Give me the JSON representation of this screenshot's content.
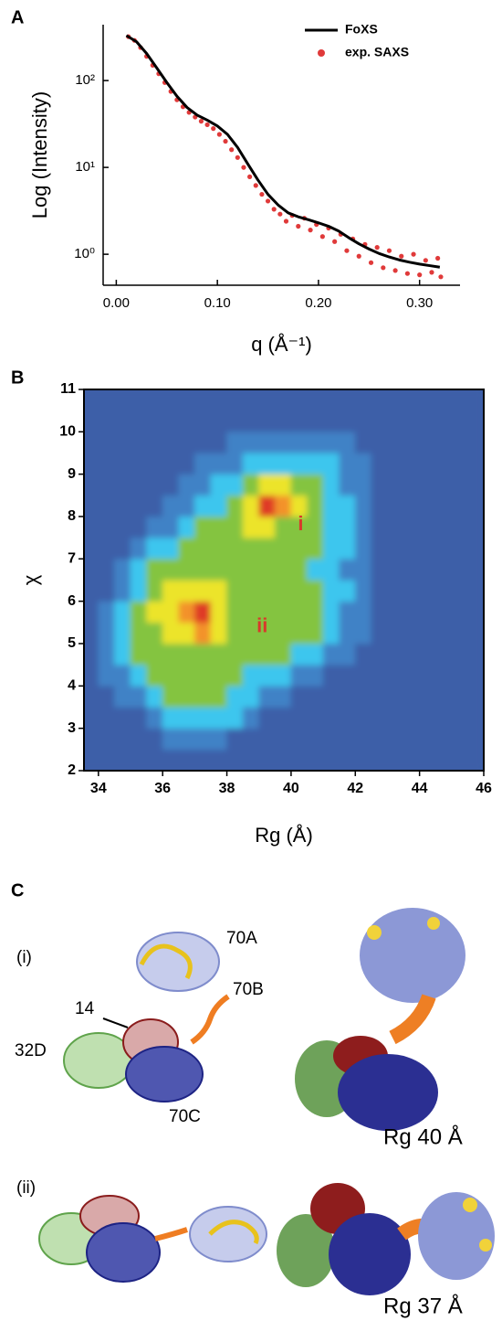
{
  "panel_labels": [
    "A",
    "B",
    "C"
  ],
  "chart_data": [
    {
      "type": "line",
      "ylabel": "Log (Intensity)",
      "xlabel": "q (Å⁻¹)",
      "xlim": [
        -0.013,
        0.34
      ],
      "ylim": [
        0.44,
        440
      ],
      "log_y": true,
      "legend": "upper right",
      "xticks": [
        {
          "value": 0,
          "label": "0.00"
        },
        {
          "value": 0.1,
          "label": "0.10"
        },
        {
          "value": 0.2,
          "label": "0.20"
        },
        {
          "value": 0.3,
          "label": "0.30"
        }
      ],
      "yticks": [
        {
          "value": 1,
          "label": "10⁰"
        },
        {
          "value": 10,
          "label": "10¹"
        },
        {
          "value": 100,
          "label": "10²"
        }
      ],
      "series": [
        {
          "name": "exp. SAXS",
          "type": "scatter",
          "color": "#e03a3a",
          "x": [
            0.012,
            0.018,
            0.024,
            0.03,
            0.036,
            0.042,
            0.048,
            0.054,
            0.06,
            0.066,
            0.072,
            0.078,
            0.084,
            0.09,
            0.096,
            0.102,
            0.108,
            0.114,
            0.12,
            0.126,
            0.132,
            0.138,
            0.144,
            0.15,
            0.156,
            0.162,
            0.168,
            0.174,
            0.18,
            0.186,
            0.192,
            0.198,
            0.204,
            0.21,
            0.216,
            0.222,
            0.228,
            0.234,
            0.24,
            0.246,
            0.252,
            0.258,
            0.264,
            0.27,
            0.276,
            0.282,
            0.288,
            0.294,
            0.3,
            0.306,
            0.312,
            0.318,
            0.321
          ],
          "values": [
            320,
            290,
            240,
            190,
            150,
            120,
            95,
            75,
            60,
            50,
            43,
            38,
            34,
            31,
            28,
            24,
            20,
            16,
            13,
            10,
            7.8,
            6.2,
            4.9,
            4.1,
            3.3,
            2.9,
            2.4,
            2.8,
            2.1,
            2.6,
            1.9,
            2.2,
            1.6,
            2.0,
            1.4,
            1.7,
            1.1,
            1.5,
            0.95,
            1.3,
            0.8,
            1.2,
            0.7,
            1.1,
            0.65,
            0.95,
            0.6,
            1.0,
            0.58,
            0.85,
            0.62,
            0.9,
            0.55
          ]
        },
        {
          "name": "FoXS",
          "type": "line",
          "color": "#000000",
          "x": [
            0.01,
            0.02,
            0.03,
            0.04,
            0.05,
            0.06,
            0.07,
            0.08,
            0.09,
            0.1,
            0.11,
            0.12,
            0.13,
            0.14,
            0.15,
            0.16,
            0.17,
            0.18,
            0.19,
            0.2,
            0.21,
            0.22,
            0.23,
            0.24,
            0.25,
            0.26,
            0.27,
            0.28,
            0.29,
            0.3,
            0.31,
            0.32
          ],
          "values": [
            330,
            280,
            205,
            140,
            95,
            66,
            49,
            40,
            35,
            30,
            24,
            17,
            11,
            7.2,
            4.9,
            3.7,
            3.0,
            2.7,
            2.5,
            2.3,
            2.1,
            1.85,
            1.55,
            1.32,
            1.15,
            1.02,
            0.93,
            0.86,
            0.81,
            0.77,
            0.74,
            0.71
          ]
        }
      ]
    },
    {
      "type": "heatmap",
      "ylabel": "χ",
      "xlabel": "Rg (Å)",
      "xlim": [
        33.55,
        46
      ],
      "ylim": [
        2,
        11
      ],
      "xticks": [
        34,
        36,
        38,
        40,
        42,
        44,
        46
      ],
      "yticks": [
        2,
        3,
        4,
        5,
        6,
        7,
        8,
        9,
        10,
        11
      ],
      "colors": [
        "#3d5fa8",
        "#3f82c6",
        "#3ec6ee",
        "#84c441",
        "#ece42a",
        "#f3922a",
        "#df3b28"
      ],
      "x": [
        33.75,
        34.25,
        34.75,
        35.25,
        35.75,
        36.25,
        36.75,
        37.25,
        37.75,
        38.25,
        38.75,
        39.25,
        39.75,
        40.25,
        40.75,
        41.25,
        41.75,
        42.25,
        42.75,
        43.25,
        43.75,
        44.25,
        44.75,
        45.25,
        45.75
      ],
      "y": [
        2.25,
        2.75,
        3.25,
        3.75,
        4.25,
        4.75,
        5.25,
        5.75,
        6.25,
        6.75,
        7.25,
        7.75,
        8.25,
        8.75,
        9.25,
        9.75,
        10.25,
        10.75
      ],
      "z": [
        [
          0,
          0,
          0,
          0,
          0,
          0,
          0,
          0,
          0,
          0,
          0,
          0,
          0,
          0,
          0,
          0,
          0,
          0,
          0,
          0,
          0,
          0,
          0,
          0,
          0
        ],
        [
          0,
          0,
          0,
          0,
          0,
          1,
          1,
          1,
          1,
          0,
          0,
          0,
          0,
          0,
          0,
          0,
          0,
          0,
          0,
          0,
          0,
          0,
          0,
          0,
          0
        ],
        [
          0,
          0,
          0,
          0,
          1,
          2,
          2,
          2,
          2,
          2,
          1,
          0,
          0,
          0,
          0,
          0,
          0,
          0,
          0,
          0,
          0,
          0,
          0,
          0,
          0
        ],
        [
          0,
          0,
          1,
          1,
          2,
          3,
          3,
          3,
          3,
          2,
          2,
          1,
          1,
          0,
          0,
          0,
          0,
          0,
          0,
          0,
          0,
          0,
          0,
          0,
          0
        ],
        [
          0,
          1,
          1,
          2,
          3,
          3,
          3,
          3,
          3,
          3,
          2,
          2,
          2,
          1,
          1,
          0,
          0,
          0,
          0,
          0,
          0,
          0,
          0,
          0,
          0
        ],
        [
          0,
          1,
          2,
          3,
          3,
          3,
          3,
          3,
          3,
          3,
          3,
          3,
          3,
          2,
          2,
          1,
          1,
          0,
          0,
          0,
          0,
          0,
          0,
          0,
          0
        ],
        [
          0,
          1,
          2,
          3,
          3,
          4,
          4,
          5,
          4,
          3,
          3,
          3,
          3,
          3,
          3,
          2,
          1,
          1,
          0,
          0,
          0,
          0,
          0,
          0,
          0
        ],
        [
          0,
          1,
          2,
          3,
          4,
          4,
          5,
          6,
          4,
          3,
          3,
          3,
          3,
          3,
          3,
          2,
          1,
          1,
          0,
          0,
          0,
          0,
          0,
          0,
          0
        ],
        [
          0,
          0,
          1,
          2,
          3,
          4,
          4,
          4,
          4,
          3,
          3,
          3,
          3,
          3,
          3,
          2,
          2,
          1,
          0,
          0,
          0,
          0,
          0,
          0,
          0
        ],
        [
          0,
          0,
          1,
          2,
          3,
          3,
          3,
          3,
          3,
          3,
          3,
          3,
          3,
          3,
          2,
          2,
          1,
          1,
          0,
          0,
          0,
          0,
          0,
          0,
          0
        ],
        [
          0,
          0,
          0,
          1,
          2,
          2,
          3,
          3,
          3,
          3,
          3,
          3,
          3,
          3,
          3,
          2,
          2,
          1,
          0,
          0,
          0,
          0,
          0,
          0,
          0
        ],
        [
          0,
          0,
          0,
          0,
          1,
          1,
          2,
          3,
          3,
          3,
          4,
          4,
          3,
          3,
          3,
          2,
          2,
          1,
          0,
          0,
          0,
          0,
          0,
          0,
          0
        ],
        [
          0,
          0,
          0,
          0,
          0,
          1,
          1,
          2,
          2,
          3,
          4,
          6,
          5,
          4,
          3,
          2,
          2,
          1,
          0,
          0,
          0,
          0,
          0,
          0,
          0
        ],
        [
          0,
          0,
          0,
          0,
          0,
          0,
          1,
          1,
          2,
          2,
          3,
          4,
          4,
          3,
          3,
          2,
          1,
          1,
          0,
          0,
          0,
          0,
          0,
          0,
          0
        ],
        [
          0,
          0,
          0,
          0,
          0,
          0,
          0,
          1,
          1,
          1,
          2,
          2,
          2,
          2,
          2,
          2,
          1,
          1,
          0,
          0,
          0,
          0,
          0,
          0,
          0
        ],
        [
          0,
          0,
          0,
          0,
          0,
          0,
          0,
          0,
          0,
          1,
          1,
          1,
          1,
          1,
          1,
          1,
          1,
          0,
          0,
          0,
          0,
          0,
          0,
          0,
          0
        ],
        [
          0,
          0,
          0,
          0,
          0,
          0,
          0,
          0,
          0,
          0,
          0,
          0,
          0,
          0,
          0,
          0,
          0,
          0,
          0,
          0,
          0,
          0,
          0,
          0,
          0
        ],
        [
          0,
          0,
          0,
          0,
          0,
          0,
          0,
          0,
          0,
          0,
          0,
          0,
          0,
          0,
          0,
          0,
          0,
          0,
          0,
          0,
          0,
          0,
          0,
          0,
          0
        ]
      ],
      "annotations": [
        {
          "text": "i",
          "x": 40.3,
          "y": 7.8
        },
        {
          "text": "ii",
          "x": 39.1,
          "y": 5.4
        }
      ]
    }
  ],
  "panel_c": {
    "rows": [
      {
        "tag": "(i)",
        "labels": [
          "70A",
          "70B",
          "14",
          "32D",
          "70C"
        ],
        "caption": "Rg 40 Å"
      },
      {
        "tag": "(ii)",
        "caption": "Rg 37 Å"
      }
    ]
  }
}
